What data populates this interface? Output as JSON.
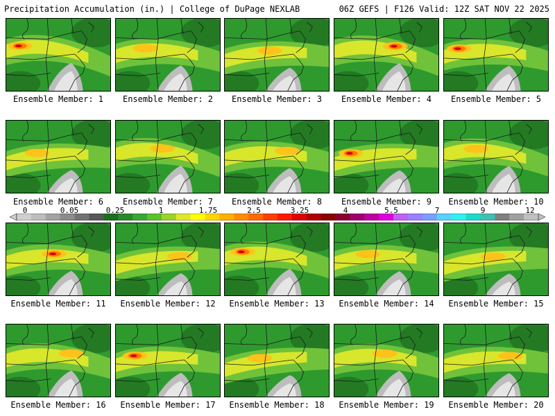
{
  "header": {
    "left": "Precipitation Accumulation (in.) | College of DuPage NEXLAB",
    "right": "06Z GEFS | F126 Valid: 12Z SAT NOV 22 2025"
  },
  "colorbar": {
    "labels": [
      "0",
      "0.05",
      "0.25",
      "1",
      "1.75",
      "2.5",
      "3.25",
      "4",
      "5.5",
      "7",
      "9",
      "12"
    ],
    "colors": [
      "#cfcfcf",
      "#bdbdbd",
      "#a3a3a3",
      "#8c8c8c",
      "#737373",
      "#585858",
      "#1e6e1e",
      "#2a8a2a",
      "#37a837",
      "#5cc12c",
      "#9ad32a",
      "#dde82a",
      "#ffff00",
      "#ffd700",
      "#ffb000",
      "#ff8c00",
      "#ff6a00",
      "#ff4000",
      "#ff1a00",
      "#e00000",
      "#b00000",
      "#8c0000",
      "#8c0030",
      "#a00070",
      "#c000a0",
      "#e000e0",
      "#c060f0",
      "#9a80ff",
      "#7aa0ff",
      "#5ad0ff",
      "#30f0f0",
      "#20d8c8",
      "#40c0b0",
      "#808080",
      "#a0a0a0",
      "#c0c0c0"
    ]
  },
  "members": [
    {
      "caption": "Ensemble Member: 1"
    },
    {
      "caption": "Ensemble Member: 2"
    },
    {
      "caption": "Ensemble Member: 3"
    },
    {
      "caption": "Ensemble Member: 4"
    },
    {
      "caption": "Ensemble Member: 5"
    },
    {
      "caption": "Ensemble Member: 6"
    },
    {
      "caption": "Ensemble Member: 7"
    },
    {
      "caption": "Ensemble Member: 8"
    },
    {
      "caption": "Ensemble Member: 9"
    },
    {
      "caption": "Ensemble Member: 10"
    },
    {
      "caption": "Ensemble Member: 11"
    },
    {
      "caption": "Ensemble Member: 12"
    },
    {
      "caption": "Ensemble Member: 13"
    },
    {
      "caption": "Ensemble Member: 14"
    },
    {
      "caption": "Ensemble Member: 15"
    },
    {
      "caption": "Ensemble Member: 16"
    },
    {
      "caption": "Ensemble Member: 17"
    },
    {
      "caption": "Ensemble Member: 18"
    },
    {
      "caption": "Ensemble Member: 19"
    },
    {
      "caption": "Ensemble Member: 20"
    }
  ]
}
